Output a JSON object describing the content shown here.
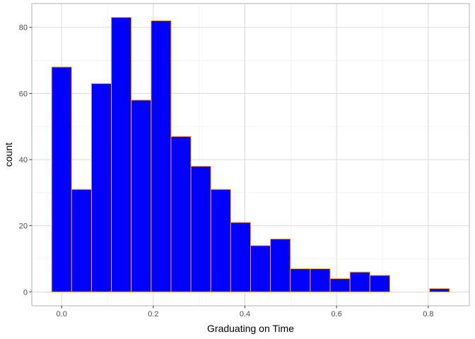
{
  "chart_data": {
    "type": "bar",
    "title": "",
    "xlabel": "Graduating on Time",
    "ylabel": "count",
    "grid": true,
    "legend": "none",
    "bin_width": 0.0434,
    "bins": [
      {
        "x0": -0.0217,
        "x1": 0.0217,
        "count": 68
      },
      {
        "x0": 0.0217,
        "x1": 0.0651,
        "count": 31
      },
      {
        "x0": 0.0651,
        "x1": 0.1085,
        "count": 63
      },
      {
        "x0": 0.1085,
        "x1": 0.1519,
        "count": 83
      },
      {
        "x0": 0.1519,
        "x1": 0.1953,
        "count": 58
      },
      {
        "x0": 0.1953,
        "x1": 0.2387,
        "count": 82
      },
      {
        "x0": 0.2387,
        "x1": 0.2821,
        "count": 47
      },
      {
        "x0": 0.2821,
        "x1": 0.3255,
        "count": 38
      },
      {
        "x0": 0.3255,
        "x1": 0.3689,
        "count": 31
      },
      {
        "x0": 0.3689,
        "x1": 0.4123,
        "count": 21
      },
      {
        "x0": 0.4123,
        "x1": 0.4557,
        "count": 14
      },
      {
        "x0": 0.4557,
        "x1": 0.4991,
        "count": 16
      },
      {
        "x0": 0.4991,
        "x1": 0.5425,
        "count": 7
      },
      {
        "x0": 0.5425,
        "x1": 0.5859,
        "count": 7
      },
      {
        "x0": 0.5859,
        "x1": 0.6293,
        "count": 4
      },
      {
        "x0": 0.6293,
        "x1": 0.6727,
        "count": 6
      },
      {
        "x0": 0.6727,
        "x1": 0.7161,
        "count": 5
      },
      {
        "x0": 0.7161,
        "x1": 0.7595,
        "count": 0
      },
      {
        "x0": 0.7595,
        "x1": 0.8029,
        "count": 0
      },
      {
        "x0": 0.8029,
        "x1": 0.8463,
        "count": 1
      }
    ],
    "xlim": [
      -0.0651,
      0.8897
    ],
    "ylim": [
      -4.2,
      87.2
    ],
    "x_ticks": [
      0.0,
      0.2,
      0.4,
      0.6,
      0.8
    ],
    "x_tick_labels": [
      "0.0",
      "0.2",
      "0.4",
      "0.6",
      "0.8"
    ],
    "y_ticks": [
      0,
      20,
      40,
      60,
      80
    ],
    "y_tick_labels": [
      "0",
      "20",
      "40",
      "60",
      "80"
    ],
    "colors": {
      "bar_fill": "#0000ff",
      "bar_outline": "#ffa500",
      "grid_major": "#d9d9d9",
      "grid_minor": "#ebebeb",
      "panel_border": "#b3b3b3",
      "tick": "#333333"
    }
  }
}
